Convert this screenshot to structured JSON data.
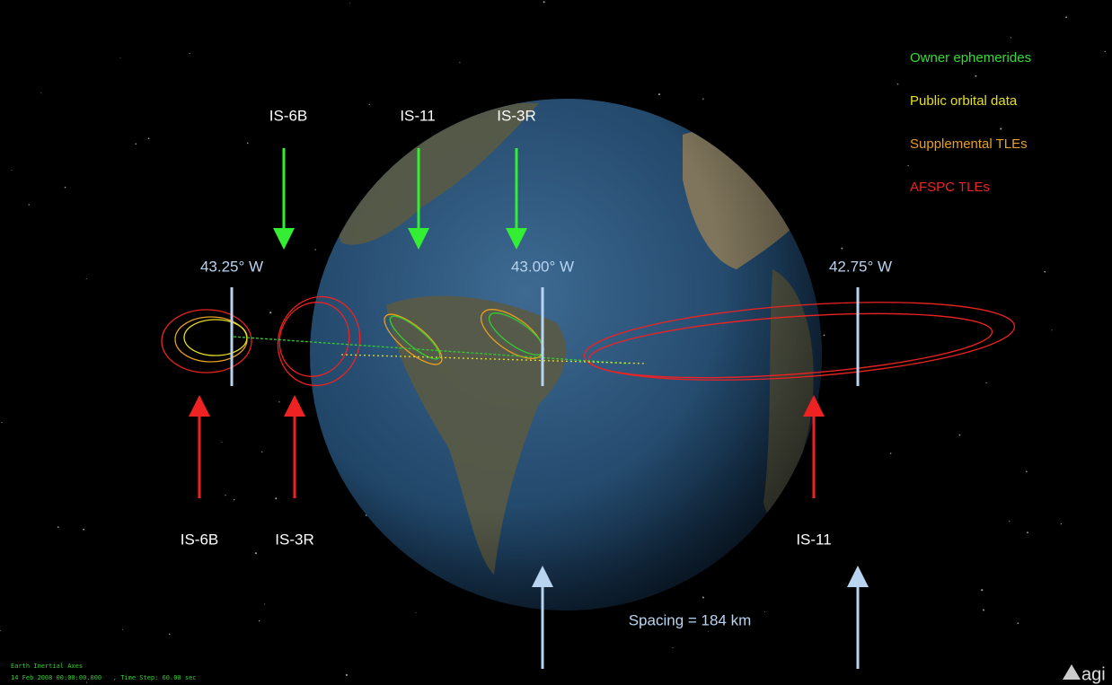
{
  "legend": [
    "Owner ephemerides",
    "Public orbital data",
    "Supplemental TLEs",
    "AFSPC TLEs"
  ],
  "top_labels": [
    "IS-6B",
    "IS-11",
    "IS-3R"
  ],
  "longitude_labels": [
    "43.25° W",
    "43.00° W",
    "42.75° W"
  ],
  "bottom_labels": [
    "IS-6B",
    "IS-3R",
    "IS-11"
  ],
  "spacing_label": "Spacing = 184 km",
  "status": [
    "Earth Inertial Axes",
    "14 Feb 2008 00:00:00.000   , Time Step: 60.00 sec"
  ],
  "logo": "agi"
}
